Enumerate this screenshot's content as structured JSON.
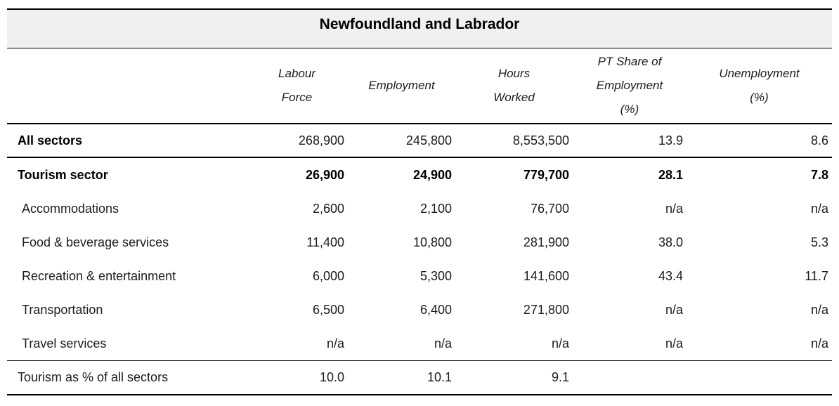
{
  "title": "Newfoundland and Labrador",
  "table": {
    "column_headers": [
      "Labour Force",
      "Employment",
      "Hours Worked",
      "PT Share of Employment (%)",
      "Unemployment (%)"
    ],
    "rows": [
      {
        "label": "All sectors",
        "values": [
          "268,900",
          "245,800",
          "8,553,500",
          "13.9",
          "8.6"
        ]
      },
      {
        "label": "Tourism sector",
        "values": [
          "26,900",
          "24,900",
          "779,700",
          "28.1",
          "7.8"
        ]
      },
      {
        "label": "Accommodations",
        "values": [
          "2,600",
          "2,100",
          "76,700",
          "n/a",
          "n/a"
        ]
      },
      {
        "label": "Food & beverage services",
        "values": [
          "11,400",
          "10,800",
          "281,900",
          "38.0",
          "5.3"
        ]
      },
      {
        "label": "Recreation & entertainment",
        "values": [
          "6,000",
          "5,300",
          "141,600",
          "43.4",
          "11.7"
        ]
      },
      {
        "label": "Transportation",
        "values": [
          "6,500",
          "6,400",
          "271,800",
          "n/a",
          "n/a"
        ]
      },
      {
        "label": "Travel services",
        "values": [
          "n/a",
          "n/a",
          "n/a",
          "n/a",
          "n/a"
        ]
      },
      {
        "label": "Tourism as % of all sectors",
        "values": [
          "10.0",
          "10.1",
          "9.1",
          "",
          ""
        ]
      }
    ]
  },
  "colors": {
    "title_background": "#f0f0f0",
    "border": "#000000",
    "text": "#1c1c1c"
  }
}
